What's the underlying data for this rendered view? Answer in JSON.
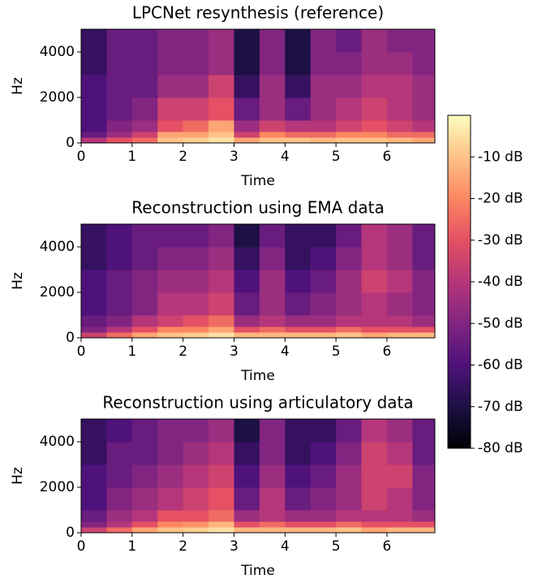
{
  "chart_data": [
    {
      "type": "heatmap",
      "title": "LPCNet resynthesis (reference)",
      "xlabel": "Time",
      "ylabel": "Hz",
      "xlim": [
        0,
        6.94
      ],
      "ylim": [
        0,
        5000
      ],
      "xticks": [
        0,
        1,
        2,
        3,
        4,
        5,
        6
      ],
      "yticks": [
        0,
        2000,
        4000
      ],
      "xbins": [
        0,
        0.5,
        1,
        1.5,
        2,
        2.5,
        3,
        3.5,
        4,
        4.5,
        5,
        5.5,
        6,
        6.5,
        7
      ],
      "ybins": [
        0,
        250,
        500,
        1000,
        2000,
        3000,
        4000,
        5000
      ],
      "values": [
        [
          -40,
          -30,
          -25,
          -10,
          -8,
          -5,
          -15,
          -10,
          -10,
          -12,
          -10,
          -10,
          -12,
          -15
        ],
        [
          -55,
          -45,
          -35,
          -15,
          -15,
          -10,
          -35,
          -20,
          -25,
          -25,
          -20,
          -20,
          -25,
          -25
        ],
        [
          -60,
          -50,
          -45,
          -30,
          -25,
          -15,
          -45,
          -35,
          -40,
          -40,
          -35,
          -30,
          -35,
          -40
        ],
        [
          -60,
          -55,
          -50,
          -35,
          -35,
          -30,
          -55,
          -45,
          -55,
          -45,
          -40,
          -35,
          -40,
          -45
        ],
        [
          -60,
          -55,
          -55,
          -45,
          -45,
          -35,
          -65,
          -45,
          -65,
          -45,
          -45,
          -40,
          -40,
          -45
        ],
        [
          -65,
          -55,
          -55,
          -50,
          -50,
          -45,
          -70,
          -50,
          -70,
          -50,
          -50,
          -45,
          -45,
          -50
        ],
        [
          -65,
          -55,
          -55,
          -50,
          -50,
          -45,
          -70,
          -50,
          -70,
          -50,
          -55,
          -45,
          -50,
          -50
        ]
      ]
    },
    {
      "type": "heatmap",
      "title": "Reconstruction using EMA data",
      "xlabel": "Time",
      "ylabel": "Hz",
      "xlim": [
        0,
        6.94
      ],
      "ylim": [
        0,
        5000
      ],
      "xticks": [
        0,
        1,
        2,
        3,
        4,
        5,
        6
      ],
      "yticks": [
        0,
        2000,
        4000
      ],
      "xbins": [
        0,
        0.5,
        1,
        1.5,
        2,
        2.5,
        3,
        3.5,
        4,
        4.5,
        5,
        5.5,
        6,
        6.5,
        7
      ],
      "ybins": [
        0,
        250,
        500,
        1000,
        2000,
        3000,
        4000,
        5000
      ],
      "values": [
        [
          -35,
          -25,
          -15,
          -10,
          -8,
          -5,
          -12,
          -12,
          -12,
          -12,
          -10,
          -15,
          -12,
          -12
        ],
        [
          -50,
          -40,
          -30,
          -20,
          -20,
          -15,
          -30,
          -25,
          -30,
          -30,
          -25,
          -30,
          -30,
          -30
        ],
        [
          -55,
          -50,
          -40,
          -35,
          -30,
          -25,
          -45,
          -40,
          -45,
          -45,
          -40,
          -40,
          -40,
          -45
        ],
        [
          -60,
          -55,
          -50,
          -40,
          -40,
          -35,
          -55,
          -45,
          -55,
          -50,
          -45,
          -40,
          -45,
          -50
        ],
        [
          -60,
          -55,
          -50,
          -45,
          -45,
          -40,
          -60,
          -45,
          -60,
          -55,
          -45,
          -35,
          -40,
          -50
        ],
        [
          -65,
          -60,
          -55,
          -50,
          -50,
          -45,
          -65,
          -50,
          -65,
          -60,
          -50,
          -40,
          -45,
          -55
        ],
        [
          -65,
          -60,
          -55,
          -55,
          -55,
          -50,
          -70,
          -55,
          -65,
          -65,
          -55,
          -40,
          -45,
          -55
        ]
      ]
    },
    {
      "type": "heatmap",
      "title": "Reconstruction using articulatory data",
      "xlabel": "Time",
      "ylabel": "Hz",
      "xlim": [
        0,
        6.94
      ],
      "ylim": [
        0,
        5000
      ],
      "xticks": [
        0,
        1,
        2,
        3,
        4,
        5,
        6
      ],
      "yticks": [
        0,
        2000,
        4000
      ],
      "xbins": [
        0,
        0.5,
        1,
        1.5,
        2,
        2.5,
        3,
        3.5,
        4,
        4.5,
        5,
        5.5,
        6,
        6.5,
        7
      ],
      "ybins": [
        0,
        250,
        500,
        1000,
        2000,
        3000,
        4000,
        5000
      ],
      "values": [
        [
          -35,
          -25,
          -15,
          -10,
          -8,
          -5,
          -12,
          -12,
          -12,
          -12,
          -10,
          -15,
          -12,
          -12
        ],
        [
          -50,
          -40,
          -30,
          -20,
          -18,
          -12,
          -30,
          -25,
          -30,
          -30,
          -25,
          -30,
          -30,
          -30
        ],
        [
          -55,
          -45,
          -40,
          -30,
          -30,
          -25,
          -45,
          -40,
          -45,
          -45,
          -40,
          -40,
          -40,
          -45
        ],
        [
          -60,
          -50,
          -45,
          -40,
          -35,
          -30,
          -55,
          -40,
          -55,
          -50,
          -45,
          -35,
          -40,
          -50
        ],
        [
          -60,
          -55,
          -50,
          -45,
          -40,
          -35,
          -60,
          -45,
          -60,
          -55,
          -45,
          -35,
          -35,
          -50
        ],
        [
          -65,
          -55,
          -55,
          -50,
          -45,
          -40,
          -65,
          -50,
          -65,
          -60,
          -50,
          -35,
          -40,
          -55
        ],
        [
          -65,
          -60,
          -55,
          -50,
          -50,
          -45,
          -70,
          -50,
          -65,
          -65,
          -55,
          -40,
          -45,
          -55
        ]
      ]
    },
    {
      "type": "colorbar",
      "clim": [
        -80,
        0
      ],
      "colormap": [
        "#000004",
        "#1c1044",
        "#4f127b",
        "#812581",
        "#b5367a",
        "#e55064",
        "#fb8761",
        "#fec287",
        "#fcfdbf"
      ],
      "ticks": [
        {
          "value": -10,
          "label": "-10 dB"
        },
        {
          "value": -20,
          "label": "-20 dB"
        },
        {
          "value": -30,
          "label": "-30 dB"
        },
        {
          "value": -40,
          "label": "-40 dB"
        },
        {
          "value": -50,
          "label": "-50 dB"
        },
        {
          "value": -60,
          "label": "-60 dB"
        },
        {
          "value": -70,
          "label": "-70 dB"
        },
        {
          "value": -80,
          "label": "-80 dB"
        }
      ]
    }
  ]
}
